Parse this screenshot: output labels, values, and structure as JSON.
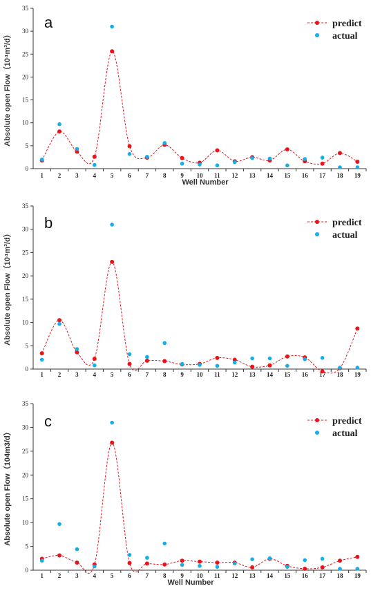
{
  "colors": {
    "predict": "#e8141c",
    "actual": "#16aee6",
    "axis": "#333333"
  },
  "chart_data": [
    {
      "type": "line",
      "panel_label": "a",
      "xlabel": "Well Number",
      "ylabel": "Absolute open Flow（10⁴m³/d）",
      "ylim": [
        0,
        35
      ],
      "yticks": [
        0,
        5,
        10,
        15,
        20,
        25,
        30,
        35
      ],
      "categories": [
        "1",
        "2",
        "3",
        "4",
        "5",
        "6",
        "7",
        "8",
        "9",
        "10",
        "11",
        "12",
        "13",
        "14",
        "15",
        "16",
        "17",
        "18",
        "19"
      ],
      "legend_position": "top-right",
      "series": [
        {
          "name": "predict",
          "style": "dashed-line-with-dots",
          "values": [
            1.8,
            8.1,
            3.7,
            2.6,
            25.6,
            4.9,
            2.4,
            5.2,
            2.3,
            1.3,
            4.0,
            1.6,
            2.5,
            1.8,
            4.2,
            1.6,
            1.1,
            3.4,
            1.5
          ]
        },
        {
          "name": "actual",
          "style": "dots",
          "values": [
            2.0,
            9.7,
            4.3,
            0.8,
            31.0,
            3.2,
            2.6,
            5.6,
            1.1,
            0.9,
            0.7,
            1.4,
            2.3,
            2.2,
            0.7,
            2.1,
            2.4,
            0.3,
            0.3
          ]
        }
      ]
    },
    {
      "type": "line",
      "panel_label": "b",
      "xlabel": "",
      "ylabel": "Absolute open Flow（10⁴m³/d）",
      "ylim": [
        0,
        35
      ],
      "yticks": [
        0,
        5,
        10,
        15,
        20,
        25,
        30,
        35
      ],
      "categories": [
        "1",
        "2",
        "3",
        "4",
        "5",
        "6",
        "7",
        "8",
        "9",
        "10",
        "11",
        "12",
        "13",
        "14",
        "15",
        "16",
        "17",
        "18",
        "19"
      ],
      "legend_position": "top-right",
      "series": [
        {
          "name": "predict",
          "style": "dashed-line-with-dots",
          "values": [
            3.4,
            10.5,
            3.6,
            2.2,
            23.0,
            1.1,
            1.8,
            1.7,
            1.0,
            1.1,
            2.4,
            2.0,
            0.5,
            0.8,
            2.7,
            2.5,
            -0.5,
            0.2,
            8.7
          ]
        },
        {
          "name": "actual",
          "style": "dots",
          "values": [
            2.0,
            9.7,
            4.3,
            0.8,
            31.0,
            3.2,
            2.6,
            5.6,
            1.1,
            0.9,
            0.7,
            1.4,
            2.3,
            2.3,
            0.7,
            2.1,
            2.4,
            0.3,
            0.3
          ]
        }
      ]
    },
    {
      "type": "line",
      "panel_label": "c",
      "xlabel": "Well Number",
      "ylabel": "Absolute open Flow（104m3/d）",
      "ylim": [
        0,
        35
      ],
      "yticks": [
        0,
        5,
        10,
        15,
        20,
        25,
        30,
        35
      ],
      "categories": [
        "1",
        "2",
        "3",
        "4",
        "5",
        "6",
        "7",
        "8",
        "9",
        "10",
        "11",
        "12",
        "13",
        "14",
        "15",
        "16",
        "17",
        "18",
        "19"
      ],
      "legend_position": "top-right",
      "series": [
        {
          "name": "predict",
          "style": "dashed-line-with-dots",
          "values": [
            2.4,
            3.1,
            1.6,
            1.2,
            26.8,
            1.5,
            1.4,
            1.2,
            2.0,
            1.8,
            1.6,
            1.6,
            0.6,
            2.4,
            0.9,
            0.3,
            0.6,
            2.0,
            2.8
          ]
        },
        {
          "name": "actual",
          "style": "dots",
          "values": [
            2.0,
            9.7,
            4.4,
            0.8,
            31.0,
            3.2,
            2.6,
            5.6,
            1.1,
            0.9,
            0.7,
            1.4,
            2.3,
            2.5,
            0.7,
            2.1,
            2.4,
            0.3,
            0.3
          ]
        }
      ]
    }
  ]
}
